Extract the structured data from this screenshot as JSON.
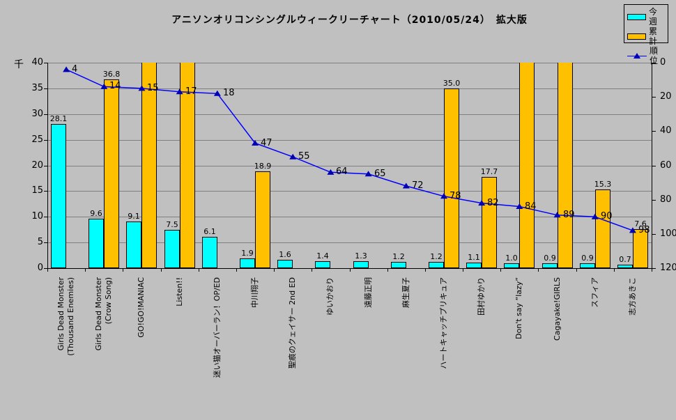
{
  "title": "アニソンオリコンシングルウィークリーチャート（2010/05/24）　拡大版",
  "legend": [
    {
      "label": "今週",
      "type": "bar",
      "color": "#00FFFF"
    },
    {
      "label": "累計",
      "type": "bar",
      "color": "#FFC000"
    },
    {
      "label": "順位",
      "type": "line",
      "color": "#0000FF",
      "marker_color": "#0000B4"
    }
  ],
  "colors": {
    "background": "#C0C0C0",
    "gridline": "#808080",
    "axis": "#000000",
    "weekly_bar": "#00FFFF",
    "cumulative_bar": "#FFC000",
    "rank_line": "#0000FF",
    "rank_marker": "#0000B4"
  },
  "chart_data": {
    "type": "bar",
    "title": "アニソンオリコンシングルウィークリーチャート（2010/05/24）　拡大版",
    "left_axis": {
      "unit": "千",
      "min": 0,
      "max": 40,
      "step": 5,
      "ticks": [
        0,
        5,
        10,
        15,
        20,
        25,
        30,
        35,
        40
      ]
    },
    "right_axis": {
      "min": 0,
      "max": 120,
      "step": 20,
      "reversed": true,
      "ticks": [
        0,
        20,
        40,
        60,
        80,
        100,
        120
      ]
    },
    "grid": true,
    "legend_position": "top-right",
    "categories": [
      "Girls Dead Monster\n(Thousand Enemies)",
      "Girls Dead Monster\n(Crow Song)",
      "GO!GO!MANIAC",
      "Listen!!",
      "迷い猫オーバーラン！OP/ED",
      "中川翔子",
      "聖痕のクェイサー 2nd ED",
      "ゆいかおり",
      "遠藤正明",
      "麻生夏子",
      "ハートキャッチプリキュア",
      "田村ゆかり",
      "Don't say “lazy”",
      "Cagayake!GIRLS",
      "スフィア",
      "志方あきこ"
    ],
    "series": [
      {
        "name": "今週",
        "type": "bar",
        "axis": "left",
        "color": "#00FFFF",
        "values": [
          28.1,
          9.6,
          9.1,
          7.5,
          6.1,
          1.9,
          1.6,
          1.4,
          1.3,
          1.2,
          1.2,
          1.1,
          1.0,
          0.9,
          0.9,
          0.7
        ]
      },
      {
        "name": "累計",
        "type": "bar",
        "axis": "left",
        "color": "#FFC000",
        "note": "values marked \"over\" are clipped at the 40 axis maximum and show no data label",
        "values": [
          null,
          36.8,
          "over",
          "over",
          null,
          18.9,
          null,
          null,
          null,
          null,
          35.0,
          17.7,
          "over",
          "over",
          15.3,
          7.6
        ]
      },
      {
        "name": "順位",
        "type": "line",
        "axis": "right",
        "color": "#0000FF",
        "values": [
          4,
          14,
          15,
          17,
          18,
          47,
          55,
          64,
          65,
          72,
          78,
          82,
          84,
          89,
          90,
          98
        ]
      }
    ]
  }
}
